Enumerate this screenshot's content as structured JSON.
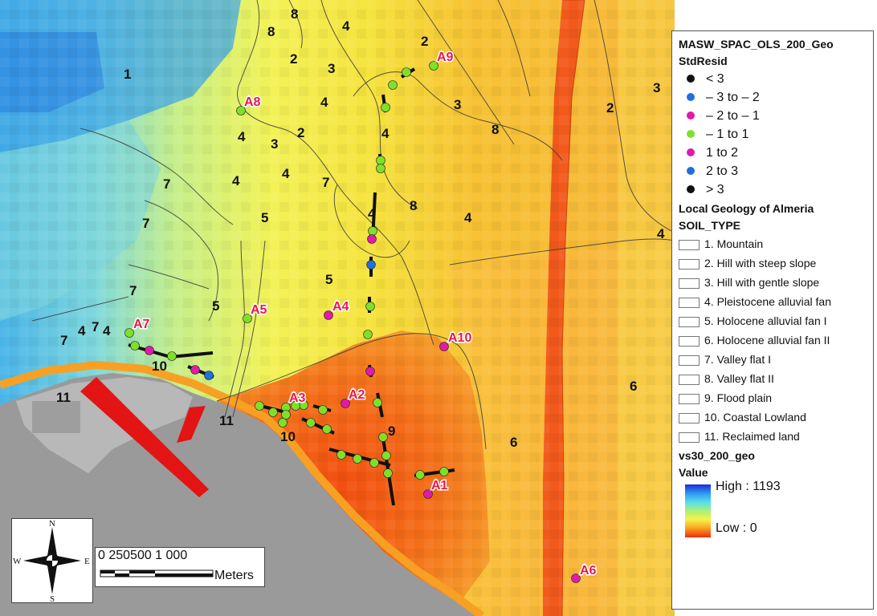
{
  "legend": {
    "layer1_title": "MASW_SPAC_OLS_200_Geo",
    "layer1_field": "StdResid",
    "stdresid_classes": [
      {
        "label": "< 3",
        "color": "#111111"
      },
      {
        "label": "– 3 to – 2",
        "color": "#1f6fe0"
      },
      {
        "label": "– 2 to – 1",
        "color": "#e21aa8"
      },
      {
        "label": "– 1 to 1",
        "color": "#7ee02a"
      },
      {
        "label": "1 to 2",
        "color": "#e21aa8"
      },
      {
        "label": "2 to 3",
        "color": "#1f6fe0"
      },
      {
        "label": "> 3",
        "color": "#111111"
      }
    ],
    "layer2_title": "Local Geology of Almeria",
    "layer2_field": "SOIL_TYPE",
    "soil_types": [
      "1. Mountain",
      "2. Hill with steep slope",
      "3. Hill with gentle slope",
      "4. Pleistocene alluvial fan",
      "5. Holocene alluvial fan I",
      "6. Holocene alluvial fan II",
      "7. Valley flat I",
      "8. Valley flat II",
      "9. Flood plain",
      "10. Coastal Lowland",
      "11. Reclaimed land"
    ],
    "layer3_title": "vs30_200_geo",
    "layer3_field": "Value",
    "ramp_high": "High : 1193",
    "ramp_low": "Low : 0"
  },
  "scalebar": {
    "ticks": "0  250500      1 000",
    "unit": "Meters"
  },
  "compass": {
    "n": "N",
    "s": "S",
    "e": "E",
    "w": "W"
  },
  "map": {
    "zone_labels": [
      "1",
      "2",
      "3",
      "4",
      "5",
      "6",
      "7",
      "8",
      "9",
      "10",
      "11"
    ],
    "sites": [
      {
        "id": "A1",
        "class": "1 to 2",
        "color": "#e21aa8"
      },
      {
        "id": "A2",
        "class": "1 to 2",
        "color": "#e21aa8"
      },
      {
        "id": "A3",
        "class": "– 1 to 1",
        "color": "#7ee02a"
      },
      {
        "id": "A4",
        "class": "1 to 2",
        "color": "#e21aa8"
      },
      {
        "id": "A5",
        "class": "– 1 to 1",
        "color": "#7ee02a"
      },
      {
        "id": "A6",
        "class": "1 to 2",
        "color": "#e21aa8"
      },
      {
        "id": "A7",
        "class": "– 1 to 1",
        "color": "#7ee02a"
      },
      {
        "id": "A8",
        "class": "– 1 to 1",
        "color": "#7ee02a"
      },
      {
        "id": "A9",
        "class": "– 1 to 1",
        "color": "#7ee02a"
      },
      {
        "id": "A10",
        "class": "1 to 2",
        "color": "#e21aa8"
      }
    ]
  },
  "colors": {
    "sea": "#9a9a9a",
    "high": "#1f2bd8",
    "low": "#f02a0c"
  }
}
